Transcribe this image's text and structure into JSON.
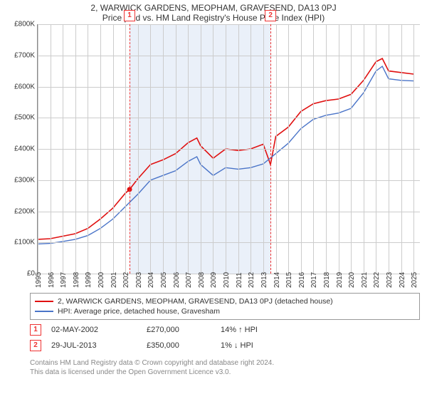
{
  "title": "2, WARWICK GARDENS, MEOPHAM, GRAVESEND, DA13 0PJ",
  "subtitle": "Price paid vs. HM Land Registry's House Price Index (HPI)",
  "chart": {
    "type": "line",
    "background_color": "#ffffff",
    "grid_color": "#cccccc",
    "border_color": "#888888",
    "shaded_band": {
      "x_start": 2002.33,
      "x_end": 2013.58,
      "fill": "#eaf0f9"
    },
    "x": {
      "min": 1995,
      "max": 2025.5,
      "ticks": [
        1995,
        1996,
        1997,
        1998,
        1999,
        2000,
        2001,
        2002,
        2003,
        2004,
        2005,
        2006,
        2007,
        2008,
        2009,
        2010,
        2011,
        2012,
        2013,
        2014,
        2015,
        2016,
        2017,
        2018,
        2019,
        2020,
        2021,
        2022,
        2023,
        2024,
        2025
      ],
      "label_fontsize": 10,
      "label_rotation": -90,
      "label_color": "#333333"
    },
    "y": {
      "min": 0,
      "max": 800000,
      "ticks": [
        0,
        100000,
        200000,
        300000,
        400000,
        500000,
        600000,
        700000,
        800000
      ],
      "tick_labels": [
        "£0",
        "£100K",
        "£200K",
        "£300K",
        "£400K",
        "£500K",
        "£600K",
        "£700K",
        "£800K"
      ],
      "label_fontsize": 10,
      "label_color": "#333333"
    },
    "markers": [
      {
        "id": "1",
        "x": 2002.33,
        "box_top_offset": -20,
        "color": "#ee3333"
      },
      {
        "id": "2",
        "x": 2013.58,
        "box_top_offset": -20,
        "color": "#ee3333"
      }
    ],
    "series": [
      {
        "name": "2, WARWICK GARDENS, MEOPHAM, GRAVESEND, DA13 0PJ (detached house)",
        "color": "#e01010",
        "line_width": 1.6,
        "data": [
          [
            1995,
            110000
          ],
          [
            1996,
            112000
          ],
          [
            1997,
            120000
          ],
          [
            1998,
            128000
          ],
          [
            1999,
            145000
          ],
          [
            2000,
            175000
          ],
          [
            2001,
            210000
          ],
          [
            2002,
            258000
          ],
          [
            2002.33,
            270000
          ],
          [
            2003,
            305000
          ],
          [
            2004,
            350000
          ],
          [
            2005,
            365000
          ],
          [
            2006,
            385000
          ],
          [
            2007,
            420000
          ],
          [
            2007.7,
            435000
          ],
          [
            2008,
            410000
          ],
          [
            2009,
            370000
          ],
          [
            2010,
            400000
          ],
          [
            2011,
            395000
          ],
          [
            2012,
            400000
          ],
          [
            2013,
            415000
          ],
          [
            2013.58,
            350000
          ],
          [
            2014,
            440000
          ],
          [
            2015,
            470000
          ],
          [
            2016,
            520000
          ],
          [
            2017,
            545000
          ],
          [
            2018,
            555000
          ],
          [
            2019,
            560000
          ],
          [
            2020,
            575000
          ],
          [
            2021,
            620000
          ],
          [
            2022,
            680000
          ],
          [
            2022.5,
            690000
          ],
          [
            2023,
            650000
          ],
          [
            2024,
            645000
          ],
          [
            2025,
            640000
          ]
        ]
      },
      {
        "name": "HPI: Average price, detached house, Gravesham",
        "color": "#4a74c8",
        "line_width": 1.4,
        "data": [
          [
            1995,
            95000
          ],
          [
            1996,
            97000
          ],
          [
            1997,
            103000
          ],
          [
            1998,
            110000
          ],
          [
            1999,
            122000
          ],
          [
            2000,
            145000
          ],
          [
            2001,
            175000
          ],
          [
            2002,
            215000
          ],
          [
            2003,
            255000
          ],
          [
            2004,
            300000
          ],
          [
            2005,
            315000
          ],
          [
            2006,
            330000
          ],
          [
            2007,
            360000
          ],
          [
            2007.7,
            375000
          ],
          [
            2008,
            350000
          ],
          [
            2009,
            315000
          ],
          [
            2010,
            340000
          ],
          [
            2011,
            335000
          ],
          [
            2012,
            340000
          ],
          [
            2013,
            352000
          ],
          [
            2014,
            385000
          ],
          [
            2015,
            418000
          ],
          [
            2016,
            465000
          ],
          [
            2017,
            495000
          ],
          [
            2018,
            508000
          ],
          [
            2019,
            515000
          ],
          [
            2020,
            530000
          ],
          [
            2021,
            580000
          ],
          [
            2022,
            650000
          ],
          [
            2022.5,
            665000
          ],
          [
            2023,
            625000
          ],
          [
            2024,
            620000
          ],
          [
            2025,
            618000
          ]
        ]
      }
    ]
  },
  "legend": {
    "border_color": "#999999",
    "items": [
      {
        "color": "#e01010",
        "label": "2, WARWICK GARDENS, MEOPHAM, GRAVESEND, DA13 0PJ (detached house)"
      },
      {
        "color": "#4a74c8",
        "label": "HPI: Average price, detached house, Gravesham"
      }
    ]
  },
  "events": [
    {
      "id": "1",
      "date": "02-MAY-2002",
      "price": "£270,000",
      "delta": "14% ↑ HPI"
    },
    {
      "id": "2",
      "date": "29-JUL-2013",
      "price": "£350,000",
      "delta": "1% ↓ HPI"
    }
  ],
  "footer": {
    "line1": "Contains HM Land Registry data © Crown copyright and database right 2024.",
    "line2": "This data is licensed under the Open Government Licence v3.0."
  }
}
